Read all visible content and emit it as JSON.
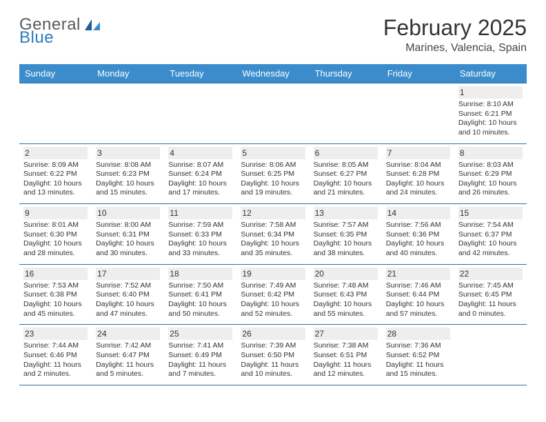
{
  "brand": {
    "text1": "General",
    "text2": "Blue"
  },
  "title": "February 2025",
  "location": "Marines, Valencia, Spain",
  "colors": {
    "header_bg": "#3a8ccc",
    "row_border": "#2e6ea5",
    "daynum_bg": "#eeeeee",
    "logo_gray": "#5a5a5a",
    "logo_blue": "#2a7ac0"
  },
  "day_headers": [
    "Sunday",
    "Monday",
    "Tuesday",
    "Wednesday",
    "Thursday",
    "Friday",
    "Saturday"
  ],
  "weeks": [
    [
      null,
      null,
      null,
      null,
      null,
      null,
      {
        "n": "1",
        "sr": "8:10 AM",
        "ss": "6:21 PM",
        "dl": "10 hours and 10 minutes."
      }
    ],
    [
      {
        "n": "2",
        "sr": "8:09 AM",
        "ss": "6:22 PM",
        "dl": "10 hours and 13 minutes."
      },
      {
        "n": "3",
        "sr": "8:08 AM",
        "ss": "6:23 PM",
        "dl": "10 hours and 15 minutes."
      },
      {
        "n": "4",
        "sr": "8:07 AM",
        "ss": "6:24 PM",
        "dl": "10 hours and 17 minutes."
      },
      {
        "n": "5",
        "sr": "8:06 AM",
        "ss": "6:25 PM",
        "dl": "10 hours and 19 minutes."
      },
      {
        "n": "6",
        "sr": "8:05 AM",
        "ss": "6:27 PM",
        "dl": "10 hours and 21 minutes."
      },
      {
        "n": "7",
        "sr": "8:04 AM",
        "ss": "6:28 PM",
        "dl": "10 hours and 24 minutes."
      },
      {
        "n": "8",
        "sr": "8:03 AM",
        "ss": "6:29 PM",
        "dl": "10 hours and 26 minutes."
      }
    ],
    [
      {
        "n": "9",
        "sr": "8:01 AM",
        "ss": "6:30 PM",
        "dl": "10 hours and 28 minutes."
      },
      {
        "n": "10",
        "sr": "8:00 AM",
        "ss": "6:31 PM",
        "dl": "10 hours and 30 minutes."
      },
      {
        "n": "11",
        "sr": "7:59 AM",
        "ss": "6:33 PM",
        "dl": "10 hours and 33 minutes."
      },
      {
        "n": "12",
        "sr": "7:58 AM",
        "ss": "6:34 PM",
        "dl": "10 hours and 35 minutes."
      },
      {
        "n": "13",
        "sr": "7:57 AM",
        "ss": "6:35 PM",
        "dl": "10 hours and 38 minutes."
      },
      {
        "n": "14",
        "sr": "7:56 AM",
        "ss": "6:36 PM",
        "dl": "10 hours and 40 minutes."
      },
      {
        "n": "15",
        "sr": "7:54 AM",
        "ss": "6:37 PM",
        "dl": "10 hours and 42 minutes."
      }
    ],
    [
      {
        "n": "16",
        "sr": "7:53 AM",
        "ss": "6:38 PM",
        "dl": "10 hours and 45 minutes."
      },
      {
        "n": "17",
        "sr": "7:52 AM",
        "ss": "6:40 PM",
        "dl": "10 hours and 47 minutes."
      },
      {
        "n": "18",
        "sr": "7:50 AM",
        "ss": "6:41 PM",
        "dl": "10 hours and 50 minutes."
      },
      {
        "n": "19",
        "sr": "7:49 AM",
        "ss": "6:42 PM",
        "dl": "10 hours and 52 minutes."
      },
      {
        "n": "20",
        "sr": "7:48 AM",
        "ss": "6:43 PM",
        "dl": "10 hours and 55 minutes."
      },
      {
        "n": "21",
        "sr": "7:46 AM",
        "ss": "6:44 PM",
        "dl": "10 hours and 57 minutes."
      },
      {
        "n": "22",
        "sr": "7:45 AM",
        "ss": "6:45 PM",
        "dl": "11 hours and 0 minutes."
      }
    ],
    [
      {
        "n": "23",
        "sr": "7:44 AM",
        "ss": "6:46 PM",
        "dl": "11 hours and 2 minutes."
      },
      {
        "n": "24",
        "sr": "7:42 AM",
        "ss": "6:47 PM",
        "dl": "11 hours and 5 minutes."
      },
      {
        "n": "25",
        "sr": "7:41 AM",
        "ss": "6:49 PM",
        "dl": "11 hours and 7 minutes."
      },
      {
        "n": "26",
        "sr": "7:39 AM",
        "ss": "6:50 PM",
        "dl": "11 hours and 10 minutes."
      },
      {
        "n": "27",
        "sr": "7:38 AM",
        "ss": "6:51 PM",
        "dl": "11 hours and 12 minutes."
      },
      {
        "n": "28",
        "sr": "7:36 AM",
        "ss": "6:52 PM",
        "dl": "11 hours and 15 minutes."
      },
      null
    ]
  ],
  "labels": {
    "sunrise": "Sunrise:",
    "sunset": "Sunset:",
    "daylight": "Daylight:"
  }
}
